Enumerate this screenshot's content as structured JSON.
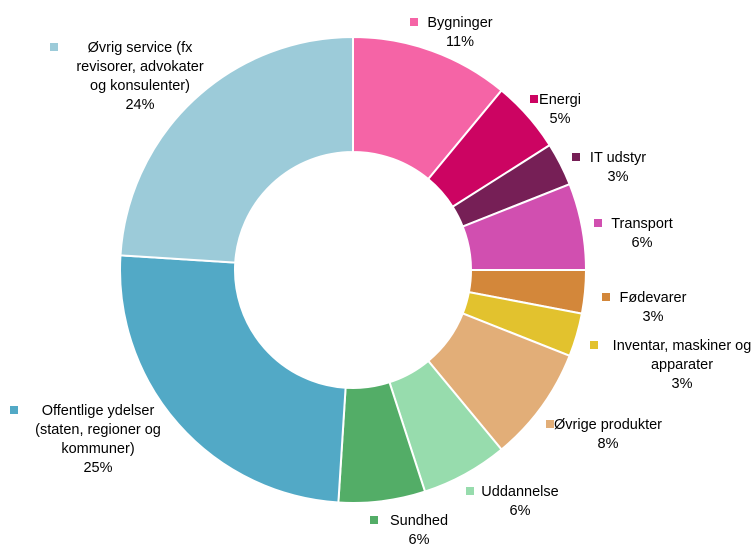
{
  "chart_data": {
    "type": "donut",
    "title": "",
    "legend": "none",
    "series": [
      {
        "values": [
          {
            "label_lines": [
              "Bygninger"
            ],
            "value_label": "11%",
            "value": 11,
            "color": "#f564a6"
          },
          {
            "label_lines": [
              "Energi"
            ],
            "value_label": "5%",
            "value": 5,
            "color": "#cc0462"
          },
          {
            "label_lines": [
              "IT udstyr"
            ],
            "value_label": "3%",
            "value": 3,
            "color": "#761f56"
          },
          {
            "label_lines": [
              "Transport"
            ],
            "value_label": "6%",
            "value": 6,
            "color": "#d14fb0"
          },
          {
            "label_lines": [
              "Fødevarer"
            ],
            "value_label": "3%",
            "value": 3,
            "color": "#d3873a"
          },
          {
            "label_lines": [
              "Inventar, maskiner og",
              "apparater"
            ],
            "value_label": "3%",
            "value": 3,
            "color": "#e2c22e"
          },
          {
            "label_lines": [
              "Øvrige produkter"
            ],
            "value_label": "8%",
            "value": 8,
            "color": "#e2ae78"
          },
          {
            "label_lines": [
              "Uddannelse"
            ],
            "value_label": "6%",
            "value": 6,
            "color": "#97dcad"
          },
          {
            "label_lines": [
              "Sundhed"
            ],
            "value_label": "6%",
            "value": 6,
            "color": "#53ad67"
          },
          {
            "label_lines": [
              "Offentlige ydelser",
              "(staten, regioner og",
              "kommuner)"
            ],
            "value_label": "25%",
            "value": 25,
            "color": "#52a9c6"
          },
          {
            "label_lines": [
              "Øvrig service (fx",
              "revisorer, advokater",
              "og konsulenter)"
            ],
            "value_label": "24%",
            "value": 24,
            "color": "#9ccbd9"
          }
        ]
      }
    ]
  }
}
